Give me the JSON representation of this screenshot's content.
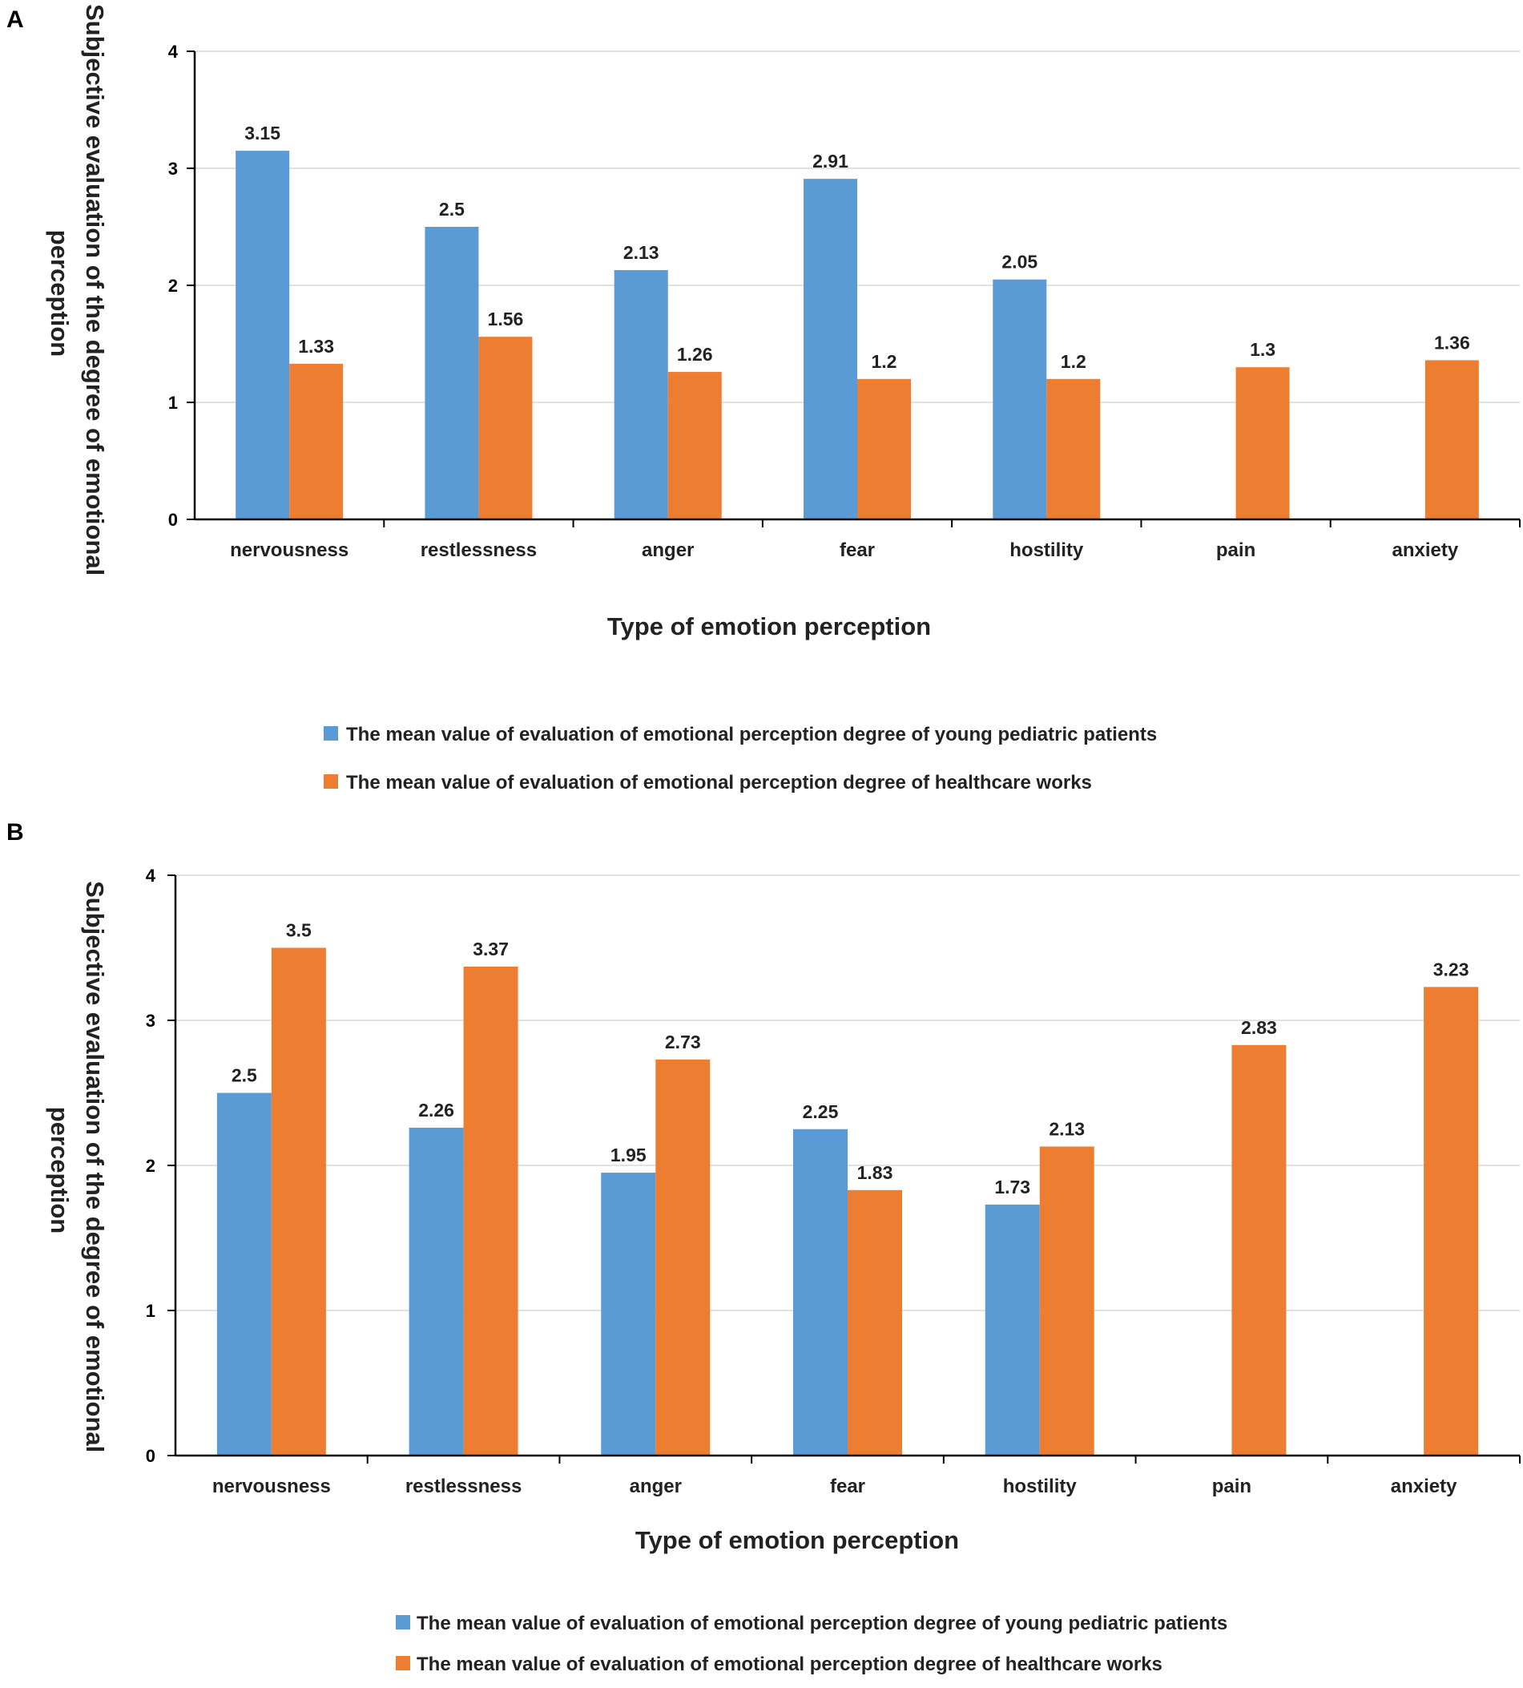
{
  "chart_data": [
    {
      "panel": "A",
      "type": "bar",
      "categories": [
        "nervousness",
        "restlessness",
        "anger",
        "fear",
        "hostility",
        "pain",
        "anxiety"
      ],
      "series": [
        {
          "name": "The mean value of evaluation of emotional perception degree of young pediatric patients",
          "color": "#5b9bd5",
          "values": [
            3.15,
            2.5,
            2.13,
            2.91,
            2.05,
            null,
            null
          ],
          "labels": [
            "3.15",
            "2.5",
            "2.13",
            "2.91",
            "2.05",
            null,
            null
          ]
        },
        {
          "name": "The mean value of evaluation of emotional perception degree of healthcare works",
          "color": "#ed7d31",
          "values": [
            1.33,
            1.56,
            1.26,
            1.2,
            1.2,
            1.3,
            1.36
          ],
          "labels": [
            "1.33",
            "1.56",
            "1.26",
            "1.2",
            "1.2",
            "1.3",
            "1.36"
          ]
        }
      ],
      "xlabel": "Type of emotion perception",
      "ylabel": "Subjective evaluation of the degree of emotional perception",
      "ylabel_lines": [
        "Subjective evaluation of the degree of emotional",
        "perception"
      ],
      "ylim": [
        0,
        4
      ],
      "yticks": [
        "0",
        "1",
        "2",
        "3",
        "4"
      ],
      "grid": true,
      "legend_position": "bottom"
    },
    {
      "panel": "B",
      "type": "bar",
      "categories": [
        "nervousness",
        "restlessness",
        "anger",
        "fear",
        "hostility",
        "pain",
        "anxiety"
      ],
      "series": [
        {
          "name": "The mean value of evaluation of emotional perception degree of young pediatric patients",
          "color": "#5b9bd5",
          "values": [
            2.5,
            2.26,
            1.95,
            2.25,
            1.73,
            null,
            null
          ],
          "labels": [
            "2.5",
            "2.26",
            "1.95",
            "2.25",
            "1.73",
            null,
            null
          ]
        },
        {
          "name": "The mean value of evaluation of emotional perception degree of healthcare works",
          "color": "#ed7d31",
          "values": [
            3.5,
            3.37,
            2.73,
            1.83,
            2.13,
            2.83,
            3.23
          ],
          "labels": [
            "3.5",
            "3.37",
            "2.73",
            "1.83",
            "2.13",
            "2.83",
            "3.23"
          ]
        }
      ],
      "xlabel": "Type of emotion perception",
      "ylabel": "Subjective evaluation of the degree of emotional perception",
      "ylabel_lines": [
        "Subjective evaluation of the degree of emotional",
        "perception"
      ],
      "ylim": [
        0,
        4
      ],
      "yticks": [
        "0",
        "1",
        "2",
        "3",
        "4"
      ],
      "grid": true,
      "legend_position": "bottom"
    }
  ]
}
